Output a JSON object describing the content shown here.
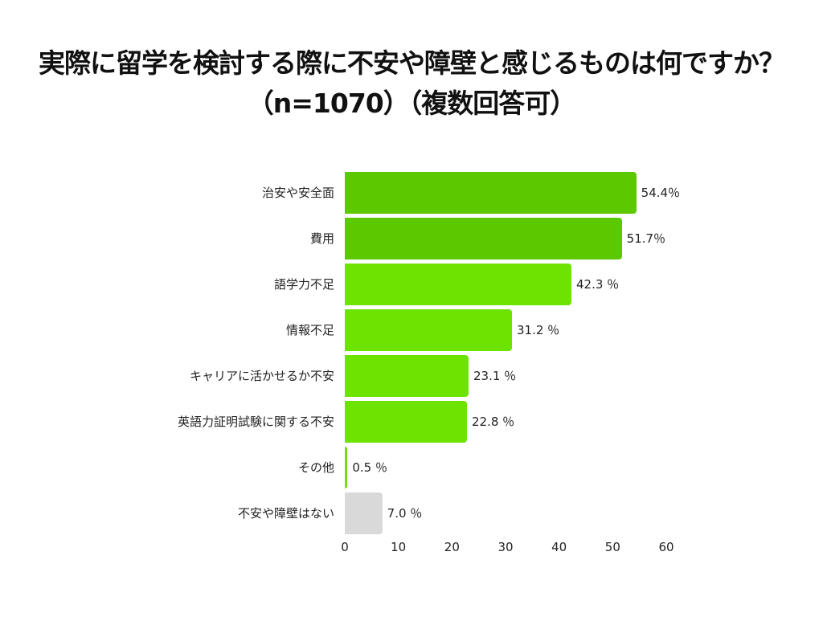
{
  "title": {
    "line1": "実際に留学を検討する際に不安や障壁と感じるものは何ですか？",
    "line2": "（n=1070）（複数回答可）"
  },
  "colors": {
    "dark_green": "#5cc800",
    "light_green": "#6de302",
    "gray": "#d9d9d9"
  },
  "chart_data": {
    "type": "bar",
    "orientation": "horizontal",
    "title": "実際に留学を検討する際に不安や障壁と感じるものは何ですか？（n=1070）（複数回答可）",
    "categories": [
      "治安や安全面",
      "費用",
      "語学力不足",
      "情報不足",
      "キャリアに活かせるか不安",
      "英語力証明試験に関する不安",
      "その他",
      "不安や障壁はない"
    ],
    "values": [
      54.4,
      51.7,
      42.3,
      31.2,
      23.1,
      22.8,
      0.5,
      7.0
    ],
    "value_labels": [
      "54.4％",
      "51.7％",
      "42.3 ％",
      "31.2 ％",
      "23.1 ％",
      "22.8 ％",
      "0.5 ％",
      "7.0 ％"
    ],
    "bar_colors": [
      "#5cc800",
      "#5cc800",
      "#6de302",
      "#6de302",
      "#6de302",
      "#6de302",
      "#6de302",
      "#d9d9d9"
    ],
    "xlabel": "",
    "ylabel": "",
    "xlim": [
      0,
      60
    ],
    "xticks": [
      "0",
      "10",
      "20",
      "30",
      "40",
      "50",
      "60"
    ],
    "grid": false,
    "legend": null
  }
}
